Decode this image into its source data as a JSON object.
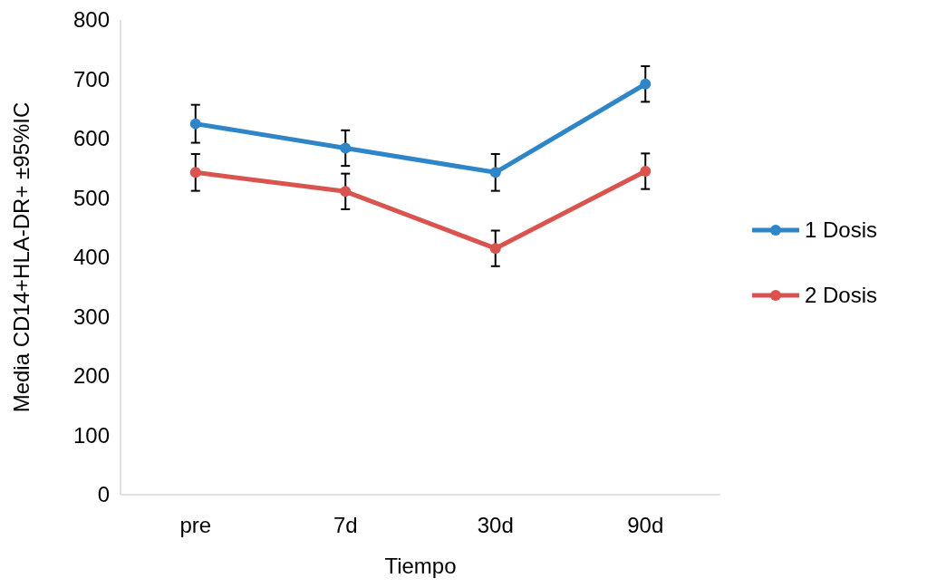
{
  "chart_data": {
    "type": "line",
    "xlabel": "Tiempo",
    "ylabel": "Media CD14+HLA-DR+ ±95%IC",
    "categories": [
      "pre",
      "7d",
      "30d",
      "90d"
    ],
    "series": [
      {
        "name": "1 Dosis",
        "color": "#2e86c8",
        "values": [
          625,
          584,
          543,
          692
        ],
        "errors": [
          32,
          30,
          31,
          30
        ]
      },
      {
        "name": "2 Dosis",
        "color": "#d9534f",
        "values": [
          543,
          511,
          415,
          545
        ],
        "errors": [
          31,
          30,
          30,
          30
        ]
      }
    ],
    "ylim": [
      0,
      800
    ],
    "yticks": [
      0,
      100,
      200,
      300,
      400,
      500,
      600,
      700,
      800
    ],
    "grid": false,
    "legend": "right",
    "marker": "circle",
    "line_style": "solid"
  }
}
